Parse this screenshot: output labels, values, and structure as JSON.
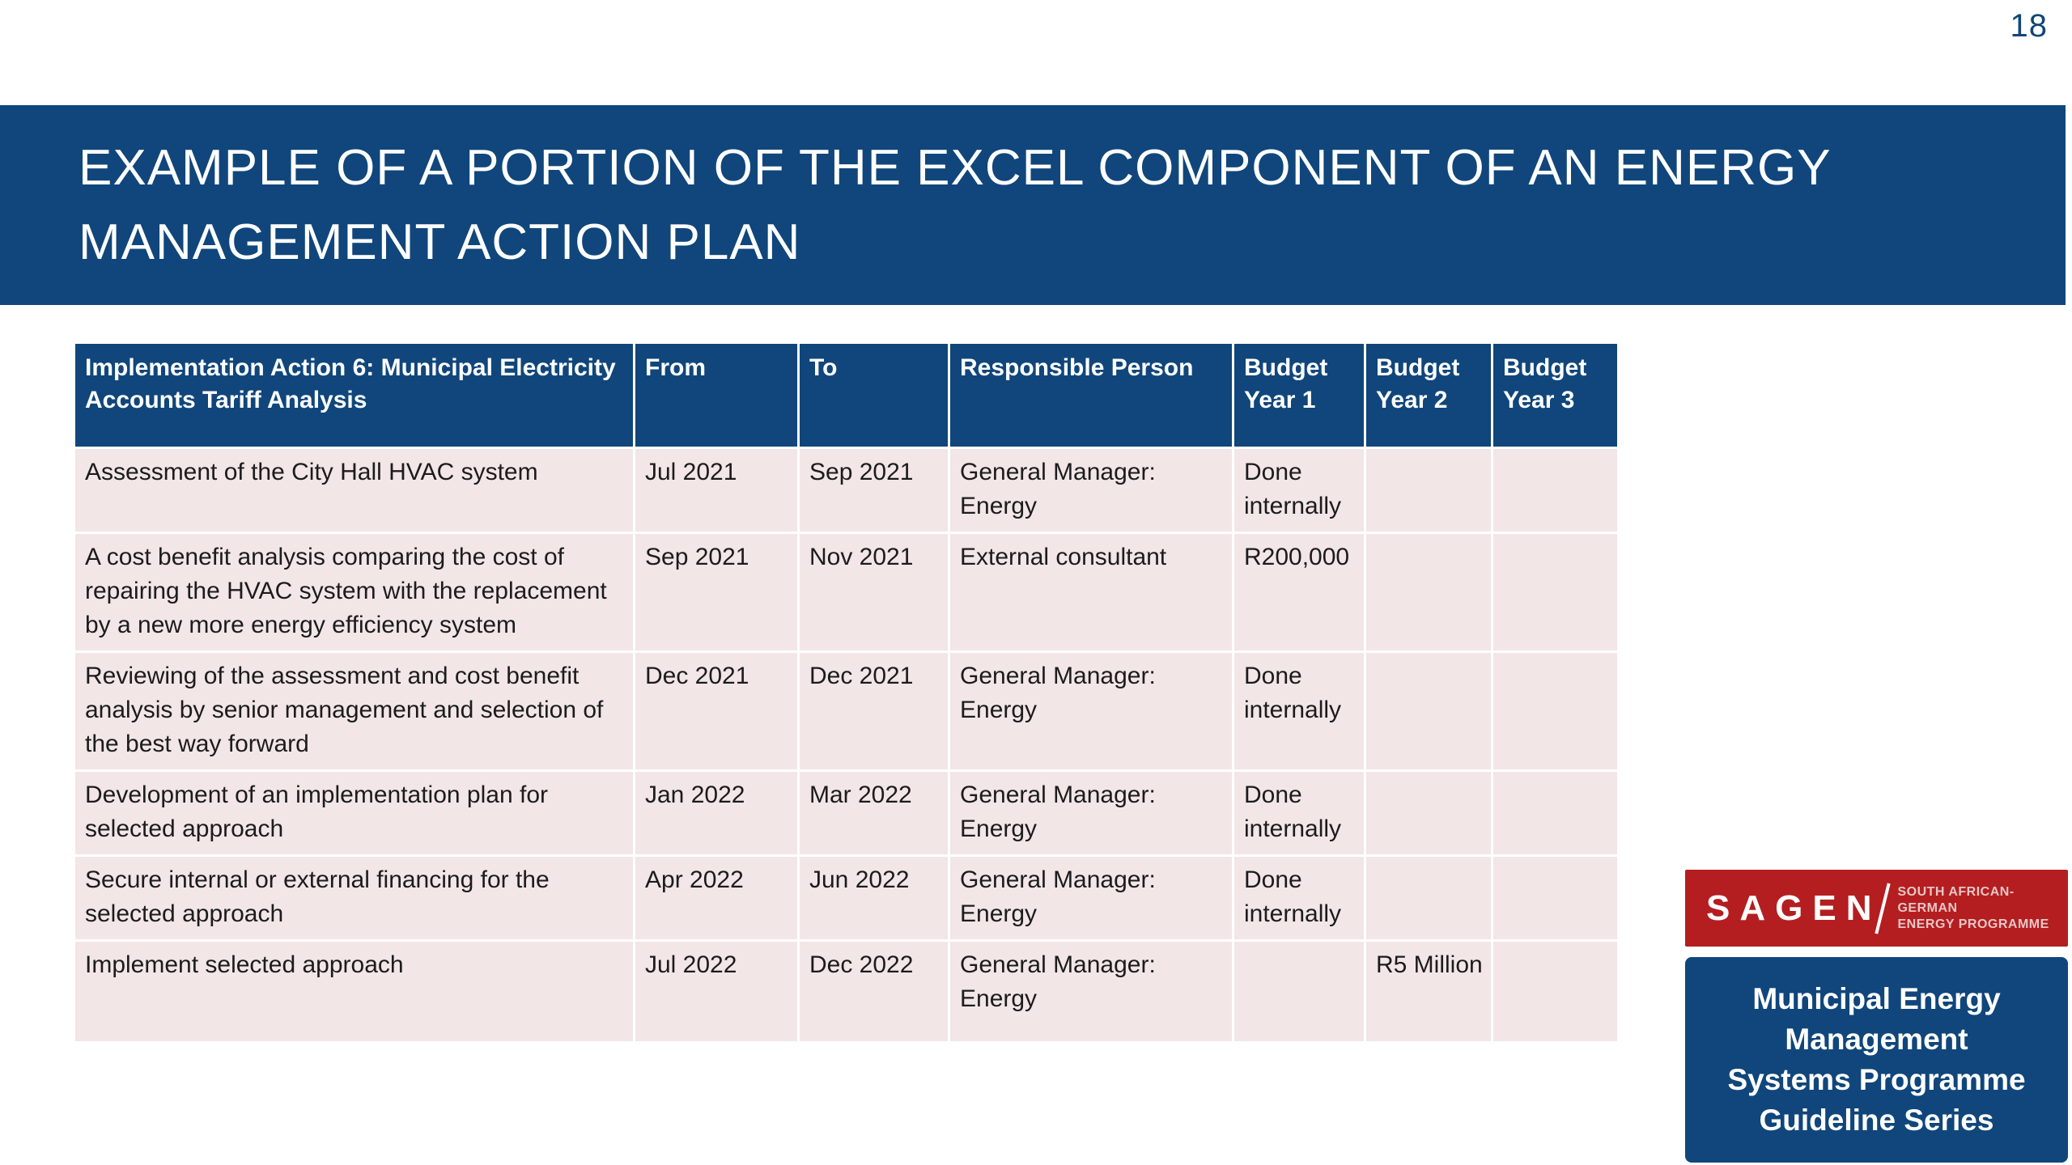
{
  "page_number": "18",
  "title": {
    "lines": [
      "EXAMPLE OF A PORTION OF THE EXCEL COMPONENT OF AN ENERGY",
      "MANAGEMENT ACTION PLAN"
    ]
  },
  "colors": {
    "navy": "#10467B",
    "logo_red": "#B41E20",
    "row_pink": "#F2E6E6",
    "body_text": "#1C1C1C",
    "divider_white": "#FFFFFF"
  },
  "table": {
    "col_keys": [
      "action",
      "from",
      "to",
      "person",
      "budget_year_1",
      "budget_year_2",
      "budget_year_3"
    ],
    "headers": {
      "action": "Implementation Action 6: Municipal Electricity Accounts Tariff Analysis",
      "from": "From",
      "to": "To",
      "person": "Responsible Person",
      "budget_year_1": "Budget Year 1",
      "budget_year_2": "Budget Year 2",
      "budget_year_3": "Budget Year 3"
    },
    "rows": [
      {
        "action": "Assessment of the City Hall HVAC system",
        "from": "Jul 2021",
        "to": "Sep 2021",
        "person": "General Manager: Energy",
        "budget_year_1": "Done internally",
        "budget_year_2": "",
        "budget_year_3": ""
      },
      {
        "action": "A cost benefit analysis comparing the cost of repairing the HVAC system with the replacement by a new more energy efficiency system",
        "from": "Sep 2021",
        "to": "Nov 2021",
        "person": "External consultant",
        "budget_year_1": "R200,000",
        "budget_year_2": "",
        "budget_year_3": ""
      },
      {
        "action": "Reviewing of the assessment and cost benefit analysis by senior management and selection of the best way forward",
        "from": "Dec 2021",
        "to": "Dec 2021",
        "person": "General Manager: Energy",
        "budget_year_1": "Done internally",
        "budget_year_2": "",
        "budget_year_3": ""
      },
      {
        "action": "Development of an implementation plan for selected approach",
        "from": "Jan 2022",
        "to": "Mar 2022",
        "person": "General Manager: Energy",
        "budget_year_1": "Done internally",
        "budget_year_2": "",
        "budget_year_3": ""
      },
      {
        "action": "Secure internal or external financing for the selected approach",
        "from": "Apr 2022",
        "to": "Jun 2022",
        "person": "General Manager: Energy",
        "budget_year_1": "Done internally",
        "budget_year_2": "",
        "budget_year_3": ""
      },
      {
        "action": "Implement selected approach",
        "from": "Jul 2022",
        "to": "Dec 2022",
        "person": "General Manager: Energy",
        "budget_year_1": "",
        "budget_year_2": "R5 Million",
        "budget_year_3": ""
      }
    ]
  },
  "footer": {
    "sagen_brand": "SAGEN",
    "sagen_tagline_lines": [
      "SOUTH AFRICAN-GERMAN",
      "ENERGY PROGRAMME"
    ],
    "series_lines": [
      "Municipal Energy",
      "Management",
      "Systems Programme",
      "Guideline Series"
    ]
  }
}
